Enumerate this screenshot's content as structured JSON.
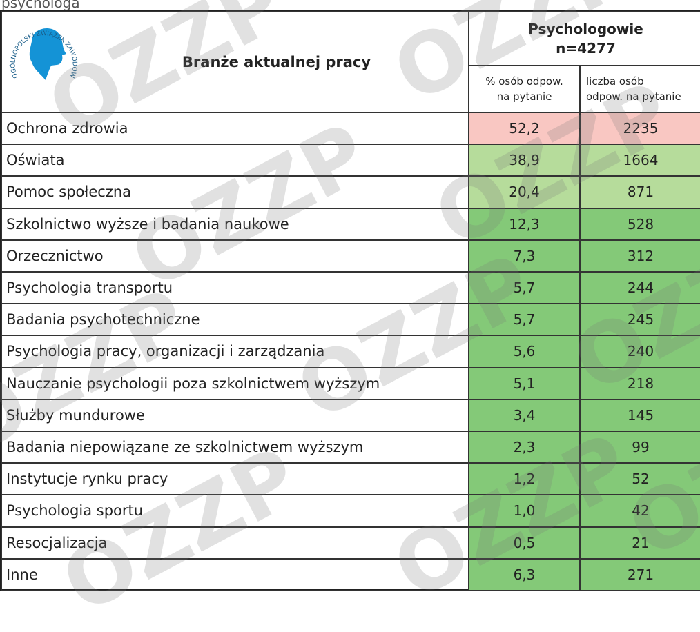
{
  "caption": "psychologa",
  "logo": {
    "text": "OGÓLNOPOLSKI ZWIĄZEK ZAWODOWY PSYCHOLOGÓW"
  },
  "watermark": "OZZP",
  "table": {
    "header": {
      "label": "Branże aktualnej pracy",
      "group": [
        "Psychologowie",
        "n=4277"
      ],
      "sub": [
        [
          "% osób odpow.",
          "na pytanie"
        ],
        [
          "liczba osób",
          "odpow. na pytanie"
        ]
      ]
    },
    "rows": [
      {
        "label": "Ochrona zdrowia",
        "pct": "52,2",
        "count": "2235",
        "color": "#f9c7c2"
      },
      {
        "label": "Oświata",
        "pct": "38,9",
        "count": "1664",
        "color": "#b6dc9b"
      },
      {
        "label": "Pomoc społeczna",
        "pct": "20,4",
        "count": "871",
        "color": "#b6dc9b"
      },
      {
        "label": "Szkolnictwo wyższe i badania naukowe",
        "pct": "12,3",
        "count": "528",
        "color": "#84c978"
      },
      {
        "label": "Orzecznictwo",
        "pct": "7,3",
        "count": "312",
        "color": "#84c978"
      },
      {
        "label": "Psychologia transportu",
        "pct": "5,7",
        "count": "244",
        "color": "#84c978"
      },
      {
        "label": "Badania psychotechniczne",
        "pct": "5,7",
        "count": "245",
        "color": "#84c978"
      },
      {
        "label": "Psychologia pracy, organizacji i zarządzania",
        "pct": "5,6",
        "count": "240",
        "color": "#84c978"
      },
      {
        "label": "Nauczanie psychologii poza szkolnictwem wyższym",
        "pct": "5,1",
        "count": "218",
        "color": "#84c978"
      },
      {
        "label": "Służby mundurowe",
        "pct": "3,4",
        "count": "145",
        "color": "#84c978"
      },
      {
        "label": "Badania niepowiązane ze szkolnictwem wyższym",
        "pct": "2,3",
        "count": "99",
        "color": "#84c978"
      },
      {
        "label": "Instytucje rynku pracy",
        "pct": "1,2",
        "count": "52",
        "color": "#84c978"
      },
      {
        "label": "Psychologia sportu",
        "pct": "1,0",
        "count": "42",
        "color": "#84c978"
      },
      {
        "label": "Resocjalizacja",
        "pct": "0,5",
        "count": "21",
        "color": "#84c978"
      },
      {
        "label": "Inne",
        "pct": "6,3",
        "count": "271",
        "color": "#84c978"
      }
    ]
  }
}
